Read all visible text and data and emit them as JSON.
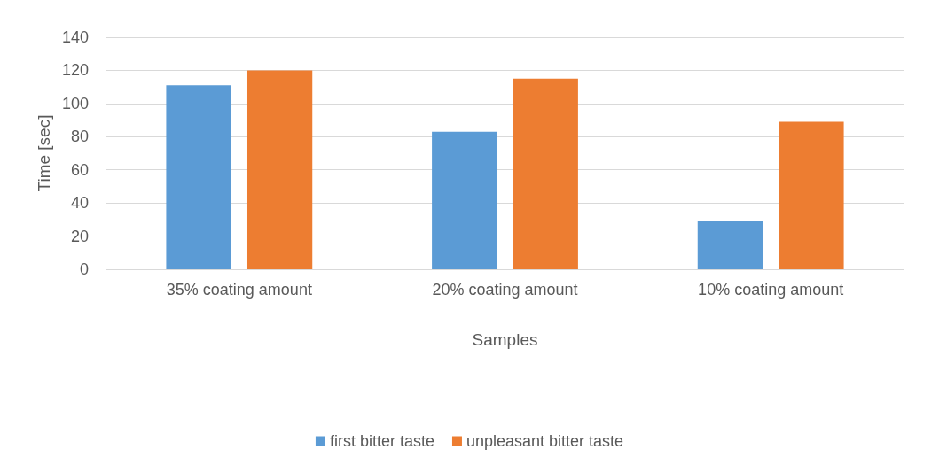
{
  "chart_data": {
    "type": "bar",
    "xlabel": "Samples",
    "ylabel": "Time [sec]",
    "categories": [
      "35% coating amount",
      "20% coating amount",
      "10% coating amount"
    ],
    "series": [
      {
        "name": "first bitter taste",
        "color": "#5b9bd5",
        "values": [
          111,
          83,
          29
        ]
      },
      {
        "name": "unpleasant bitter taste",
        "color": "#ed7d31",
        "values": [
          120,
          115,
          89
        ]
      }
    ],
    "ylim": [
      0,
      140
    ],
    "yticks": [
      0,
      20,
      40,
      60,
      80,
      100,
      120,
      140
    ],
    "grid": "y",
    "legend": "bottom"
  }
}
